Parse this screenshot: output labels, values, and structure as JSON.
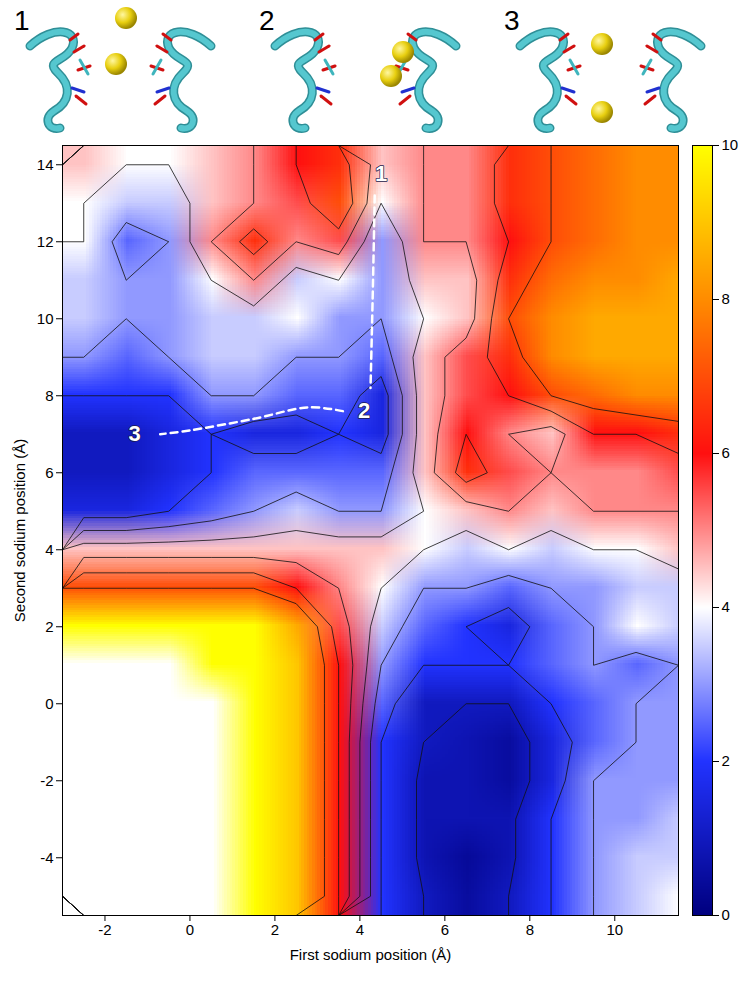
{
  "chart_data": {
    "type": "heatmap",
    "x_label": "First sodium position (Å)",
    "y_label": "Second sodium position (Å)",
    "xlim": [
      -3,
      11.5
    ],
    "xticks": [
      -2,
      0,
      2,
      4,
      6,
      8,
      10
    ],
    "ylim": [
      -5.5,
      14.5
    ],
    "yticks": [
      -4,
      -2,
      0,
      2,
      4,
      6,
      8,
      10,
      12,
      14
    ],
    "cells": {
      "x": [
        -2.5,
        -1.5,
        -0.5,
        0.5,
        1.5,
        2.5,
        3.5,
        4.5,
        5.5,
        6.5,
        7.5,
        8.5,
        9.5,
        10.5,
        11.5
      ],
      "y": [
        -5,
        -4,
        -3,
        -2,
        -1,
        0,
        1,
        2,
        3,
        4,
        5,
        6,
        7,
        8,
        9,
        10,
        11,
        12,
        13,
        14
      ],
      "values": [
        [
          null,
          null,
          null,
          null,
          10,
          9,
          6,
          2,
          1,
          0.5,
          1,
          2,
          3,
          3.5,
          4
        ],
        [
          null,
          null,
          null,
          null,
          10,
          9,
          6,
          2,
          0.8,
          0.4,
          0.8,
          2,
          3,
          3.5,
          3.5
        ],
        [
          null,
          null,
          null,
          null,
          10,
          9,
          6,
          2,
          0.8,
          0.8,
          0.8,
          2,
          3,
          3,
          3.5
        ],
        [
          null,
          null,
          null,
          null,
          10,
          9,
          6,
          2,
          0.8,
          0.8,
          0.5,
          1.5,
          3,
          3,
          3
        ],
        [
          null,
          null,
          null,
          null,
          10,
          9,
          6,
          2,
          1,
          0.8,
          0.5,
          1.5,
          2.5,
          3,
          3
        ],
        [
          null,
          null,
          null,
          null,
          10,
          9,
          6,
          2.5,
          1,
          1,
          1,
          2,
          2.5,
          3,
          3
        ],
        [
          null,
          null,
          null,
          10,
          10,
          9,
          6,
          3,
          2,
          2,
          2,
          2.5,
          3,
          2.5,
          3
        ],
        [
          10,
          10,
          10,
          10,
          10,
          8.5,
          5.5,
          3.5,
          2.5,
          2,
          1.5,
          2.5,
          3,
          4,
          3.5
        ],
        [
          7,
          7,
          7,
          7,
          7,
          6,
          5,
          4,
          3,
          3,
          2.5,
          3,
          3,
          3.5,
          3.5
        ],
        [
          4.5,
          4.5,
          4.5,
          4.5,
          4.5,
          4.5,
          4.5,
          4.5,
          4,
          3.5,
          4,
          3.5,
          4,
          4,
          4.5
        ],
        [
          1.5,
          1.5,
          2,
          2.5,
          3,
          3.5,
          3,
          3,
          4,
          4.5,
          5,
          4.5,
          5,
          5,
          5
        ],
        [
          1,
          1,
          1.5,
          2,
          2.5,
          2.5,
          2.5,
          2.5,
          4.5,
          6.5,
          5.5,
          5,
          5,
          5,
          5.5
        ],
        [
          1,
          1,
          1.5,
          2,
          1.5,
          1.5,
          2,
          1.5,
          4.5,
          6,
          5,
          4.5,
          6,
          6,
          6.5
        ],
        [
          2,
          2,
          2,
          3,
          3,
          2.5,
          2.5,
          1.5,
          4.5,
          5.5,
          6,
          7,
          7.5,
          8,
          8
        ],
        [
          3,
          2.5,
          3,
          3.5,
          3.5,
          3,
          3,
          2.5,
          4.5,
          5.5,
          6.5,
          8,
          8.5,
          8.5,
          8.5
        ],
        [
          3.5,
          3,
          3,
          3.5,
          3.5,
          4,
          3,
          3,
          4,
          4.5,
          7,
          8,
          8.5,
          8.5,
          8.5
        ],
        [
          3.5,
          3,
          3,
          4,
          5,
          3.5,
          4,
          3,
          4.5,
          4.5,
          6.5,
          7.5,
          8,
          8,
          8.5
        ],
        [
          4,
          2.5,
          3,
          5,
          6.5,
          5,
          5.5,
          3,
          5,
          5,
          6,
          7,
          7.5,
          8,
          8
        ],
        [
          4,
          3.5,
          3.5,
          4.5,
          5,
          5.5,
          7,
          4,
          5,
          5,
          6.5,
          7,
          7.5,
          8,
          8
        ],
        [
          4.5,
          4,
          4,
          4.5,
          5,
          6,
          6.5,
          4.5,
          5,
          5,
          6.5,
          7,
          7.5,
          8,
          8
        ]
      ]
    },
    "contour_levels": [
      1,
      2,
      3,
      4,
      5,
      6,
      7
    ],
    "colorbar": {
      "range": [
        0,
        10
      ],
      "ticks": [
        0,
        2,
        4,
        6,
        8,
        10
      ]
    },
    "path": {
      "x": [
        4.35,
        4.3,
        4.25,
        null,
        3.6,
        2.8,
        1.5,
        0,
        -0.7
      ],
      "y": [
        13.2,
        10.5,
        8.2,
        null,
        7.6,
        7.7,
        7.4,
        7.1,
        7.0
      ],
      "color": "white",
      "line_style": "dashed"
    },
    "annotations": [
      {
        "text": "1",
        "x": 4.5,
        "y": 13.75
      },
      {
        "text": "2",
        "x": 4.1,
        "y": 7.6
      },
      {
        "text": "3",
        "x": -1.3,
        "y": 7.0
      }
    ],
    "structures": [
      "1",
      "2",
      "3"
    ]
  }
}
